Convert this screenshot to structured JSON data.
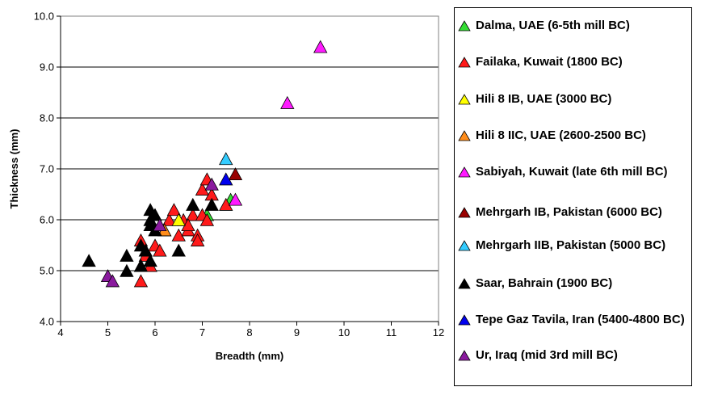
{
  "chart_data": {
    "type": "scatter",
    "title": "",
    "xlabel": "Breadth (mm)",
    "ylabel": "Thickness (mm)",
    "xlim": [
      4,
      12
    ],
    "ylim": [
      4.0,
      10.0
    ],
    "x_ticks": [
      "4",
      "5",
      "6",
      "7",
      "8",
      "9",
      "10",
      "11",
      "12"
    ],
    "y_ticks": [
      "4.0",
      "5.0",
      "6.0",
      "7.0",
      "8.0",
      "9.0",
      "10.0"
    ],
    "horizontal_grid": true,
    "marker": "triangle",
    "legend_position": "right",
    "series": [
      {
        "name": "Dalma, UAE (6-5th mill BC)",
        "color": "#33dd33",
        "points": [
          [
            7.6,
            6.4
          ],
          [
            7.1,
            6.1
          ]
        ]
      },
      {
        "name": "Failaka, Kuwait (1800 BC)",
        "color": "#ff1a1a",
        "points": [
          [
            5.7,
            5.6
          ],
          [
            5.8,
            5.3
          ],
          [
            5.9,
            5.1
          ],
          [
            6.0,
            5.5
          ],
          [
            6.1,
            5.4
          ],
          [
            6.2,
            5.8
          ],
          [
            6.3,
            6.0
          ],
          [
            6.4,
            6.2
          ],
          [
            6.5,
            5.7
          ],
          [
            6.6,
            6.0
          ],
          [
            6.7,
            5.8
          ],
          [
            6.8,
            6.1
          ],
          [
            6.9,
            5.7
          ],
          [
            6.9,
            5.6
          ],
          [
            7.0,
            6.6
          ],
          [
            7.0,
            6.1
          ],
          [
            7.1,
            6.8
          ],
          [
            7.1,
            6.0
          ],
          [
            7.2,
            6.5
          ],
          [
            7.5,
            6.3
          ],
          [
            5.7,
            4.8
          ],
          [
            6.7,
            5.9
          ]
        ]
      },
      {
        "name": "Hili 8 IB, UAE (3000 BC)",
        "color": "#ffff00",
        "points": [
          [
            6.5,
            6.0
          ]
        ]
      },
      {
        "name": "Hili 8 IIC, UAE (2600-2500 BC)",
        "color": "#ff8c1a",
        "points": [
          [
            6.2,
            5.8
          ]
        ]
      },
      {
        "name": "Sabiyah, Kuwait (late 6th mill BC)",
        "color": "#ff1aff",
        "points": [
          [
            9.5,
            9.4
          ],
          [
            8.8,
            8.3
          ],
          [
            7.7,
            6.4
          ]
        ]
      },
      {
        "name": "Mehrgarh IB, Pakistan (6000 BC)",
        "color": "#990000",
        "points": [
          [
            7.7,
            6.9
          ]
        ]
      },
      {
        "name": "Mehrgarh IIB, Pakistan (5000 BC)",
        "color": "#33ccff",
        "points": [
          [
            7.5,
            7.2
          ]
        ]
      },
      {
        "name": "Saar, Bahrain (1900 BC)",
        "color": "#000000",
        "points": [
          [
            4.6,
            5.2
          ],
          [
            5.4,
            5.3
          ],
          [
            5.4,
            5.0
          ],
          [
            5.7,
            5.5
          ],
          [
            5.7,
            5.1
          ],
          [
            5.8,
            5.4
          ],
          [
            5.9,
            5.2
          ],
          [
            5.9,
            6.2
          ],
          [
            5.9,
            6.0
          ],
          [
            6.0,
            6.1
          ],
          [
            5.9,
            5.9
          ],
          [
            6.0,
            5.8
          ],
          [
            6.5,
            5.4
          ],
          [
            6.8,
            6.3
          ],
          [
            7.2,
            6.3
          ]
        ]
      },
      {
        "name": "Tepe Gaz Tavila, Iran (5400-4800 BC)",
        "color": "#0000ee",
        "points": [
          [
            7.5,
            6.8
          ]
        ]
      },
      {
        "name": "Ur, Iraq (mid 3rd mill BC)",
        "color": "#8a1a9e",
        "points": [
          [
            5.0,
            4.9
          ],
          [
            5.1,
            4.8
          ],
          [
            6.1,
            5.9
          ],
          [
            7.2,
            6.7
          ]
        ]
      }
    ]
  }
}
